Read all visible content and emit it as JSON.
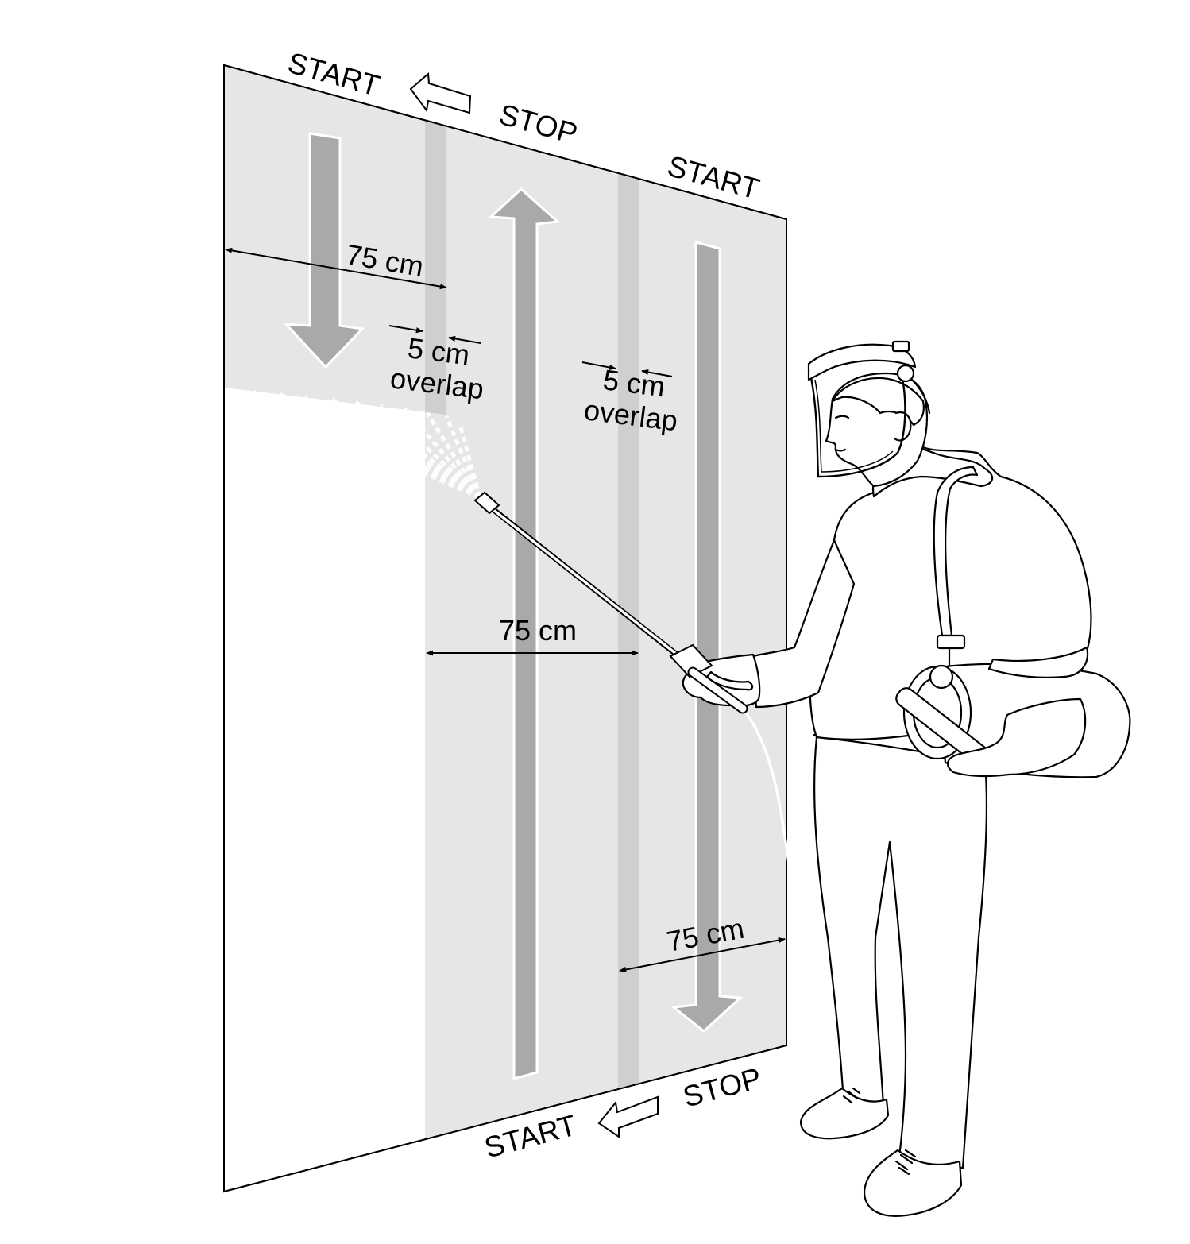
{
  "labels": {
    "top_left_start": "START",
    "top_stop": "STOP",
    "top_right_start": "START",
    "bottom_stop": "STOP",
    "bottom_start": "START"
  },
  "dimensions": {
    "width_top": "75 cm",
    "width_middle": "75 cm",
    "width_bottom": "75 cm",
    "overlap_left_value": "5 cm",
    "overlap_left_word": "overlap",
    "overlap_right_value": "5 cm",
    "overlap_right_word": "overlap"
  },
  "colors": {
    "sprayed_band": "#e6e6e6",
    "overlap_band": "#cfcfcf",
    "direction_arrow": "#a9a9a9",
    "outline": "#000000"
  }
}
